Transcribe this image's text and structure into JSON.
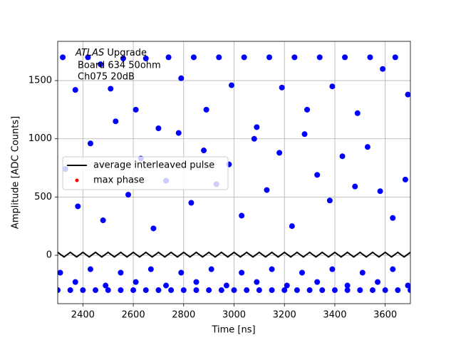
{
  "chart_data": {
    "type": "scatter",
    "x_label": "Time [ns]",
    "y_label": "Amplitude [ADC Counts]",
    "annotation": {
      "experiment": "ATLAS",
      "label": "Upgrade",
      "lines": [
        "Board 634 50ohm",
        "Ch075 20dB"
      ]
    },
    "xlim": [
      2300,
      3700
    ],
    "ylim": [
      -416,
      1837
    ],
    "xticks": [
      2400,
      2600,
      2800,
      3000,
      3200,
      3400,
      3600
    ],
    "yticks": [
      0,
      500,
      1000,
      1500
    ],
    "grid": true,
    "legend": "center left",
    "points": {
      "color": "#0000ff",
      "x": [
        2320,
        2370,
        2420,
        2470,
        2510,
        2560,
        2610,
        2650,
        2700,
        2740,
        2790,
        2840,
        2890,
        2940,
        2990,
        3040,
        3090,
        3140,
        3190,
        3240,
        3290,
        3340,
        3390,
        3440,
        3490,
        3540,
        3590,
        3640,
        3690,
        2330,
        2380,
        2430,
        2480,
        2530,
        2580,
        2630,
        2680,
        2730,
        2780,
        2830,
        2880,
        2930,
        2980,
        3030,
        3080,
        3130,
        3180,
        3230,
        3280,
        3330,
        3380,
        3430,
        3480,
        3530,
        3580,
        3630,
        3680,
        2310,
        2370,
        2430,
        2490,
        2550,
        2610,
        2670,
        2730,
        2790,
        2850,
        2910,
        2970,
        3030,
        3090,
        3150,
        3210,
        3270,
        3330,
        3390,
        3450,
        3510,
        3570,
        3630,
        3690,
        2300,
        2350,
        2400,
        2450,
        2500,
        2550,
        2600,
        2650,
        2700,
        2750,
        2800,
        2850,
        2900,
        2950,
        3000,
        3050,
        3100,
        3150,
        3200,
        3250,
        3300,
        3350,
        3400,
        3450,
        3500,
        3550,
        3600,
        3650,
        3700
      ],
      "y": [
        1700,
        1420,
        1700,
        1640,
        1430,
        1690,
        1250,
        1690,
        1090,
        1700,
        1520,
        1700,
        1250,
        1700,
        1460,
        1700,
        1100,
        1700,
        1440,
        1700,
        1250,
        1700,
        1450,
        1700,
        1220,
        1700,
        1600,
        1700,
        1380,
        740,
        420,
        960,
        300,
        1150,
        520,
        830,
        230,
        640,
        1050,
        450,
        900,
        610,
        780,
        340,
        1000,
        560,
        880,
        250,
        1040,
        690,
        470,
        850,
        590,
        930,
        550,
        320,
        650,
        -150,
        -230,
        -120,
        -260,
        -150,
        -230,
        -120,
        -260,
        -150,
        -230,
        -120,
        -260,
        -150,
        -230,
        -120,
        -260,
        -150,
        -230,
        -120,
        -260,
        -150,
        -230,
        -120,
        -260,
        -300,
        -300,
        -300,
        -300,
        -300,
        -300,
        -300,
        -300,
        -300,
        -300,
        -300,
        -300,
        -300,
        -300,
        -300,
        -300,
        -300,
        -300,
        -300,
        -300,
        -300,
        -300,
        -300,
        -300,
        -300,
        -300,
        -300,
        -300,
        -300
      ]
    },
    "series": [
      {
        "name": "average interleaved pulse",
        "color": "#000000",
        "kind": "line",
        "x": [
          2300,
          2325,
          2350,
          2375,
          2400,
          2425,
          2450,
          2475,
          2500,
          2525,
          2550,
          2575,
          2600,
          2625,
          2650,
          2675,
          2700,
          2725,
          2750,
          2775,
          2800,
          2825,
          2850,
          2875,
          2900,
          2925,
          2950,
          2975,
          3000,
          3025,
          3050,
          3075,
          3100,
          3125,
          3150,
          3175,
          3200,
          3225,
          3250,
          3275,
          3300,
          3325,
          3350,
          3375,
          3400,
          3425,
          3450,
          3475,
          3500,
          3525,
          3550,
          3575,
          3600,
          3625,
          3650,
          3675,
          3700
        ],
        "y": [
          25,
          -15,
          25,
          -15,
          25,
          -15,
          25,
          -15,
          25,
          -15,
          25,
          -15,
          25,
          -15,
          25,
          -15,
          25,
          -15,
          25,
          -15,
          25,
          -15,
          25,
          -15,
          25,
          -15,
          25,
          -15,
          25,
          -15,
          25,
          -15,
          25,
          -15,
          25,
          -15,
          25,
          -15,
          25,
          -15,
          25,
          -15,
          25,
          -15,
          25,
          -15,
          25,
          -15,
          25,
          -15,
          25,
          -15,
          25,
          -15,
          25,
          -15,
          25
        ]
      },
      {
        "name": "max phase",
        "color": "#ff0000",
        "kind": "marker",
        "x": [],
        "y": []
      }
    ]
  }
}
